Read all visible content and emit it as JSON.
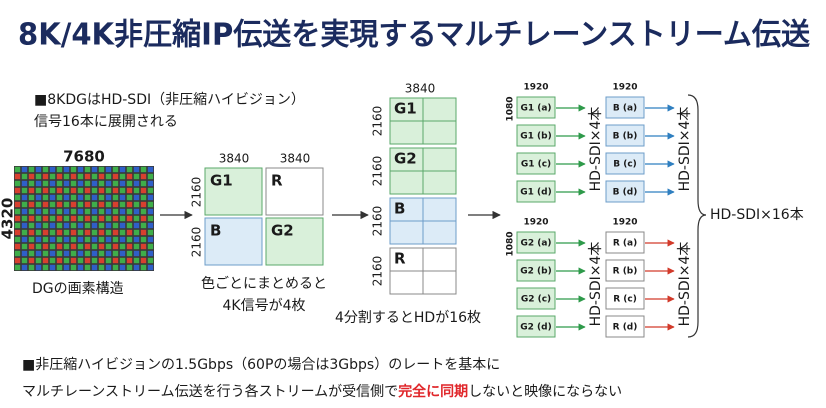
{
  "title": "8K/4K非圧縮IP伝送を実現するマルチレーンストリーム伝送",
  "note": [
    "■8KDGはHD-SDI（非圧縮ハイビジョン）",
    "信号16本に展開される"
  ],
  "source": {
    "width": "7680",
    "height": "4320",
    "caption": "DGの画素構造"
  },
  "colors": {
    "width_labels": [
      "3840",
      "3840"
    ],
    "height_labels": [
      "2160",
      "2160"
    ],
    "blocks": [
      "G1",
      "R",
      "B",
      "G2"
    ],
    "caption": [
      "色ごとにまとめると",
      "4K信号が4枚"
    ]
  },
  "split": {
    "width": "3840",
    "blocks": [
      {
        "label": "G1",
        "height": "2160"
      },
      {
        "label": "G2",
        "height": "2160"
      },
      {
        "label": "B",
        "height": "2160"
      },
      {
        "label": "R",
        "height": "2160"
      }
    ],
    "caption": "4分割するとHDが16枚"
  },
  "streams": {
    "groups": [
      {
        "width": "1920",
        "height": "1080",
        "items": [
          "G1 (a)",
          "G1 (b)",
          "G1 (c)",
          "G1 (d)"
        ],
        "count": "HD-SDI×4本"
      },
      {
        "width": "1920",
        "items": [
          "B (a)",
          "B (b)",
          "B (c)",
          "B (d)"
        ],
        "count": "HD-SDI×4本"
      },
      {
        "width": "1920",
        "height": "1080",
        "items": [
          "G2 (a)",
          "G2 (b)",
          "G2 (c)",
          "G2 (d)"
        ],
        "count": "HD-SDI×4本"
      },
      {
        "width": "1920",
        "items": [
          "R (a)",
          "R (b)",
          "R (c)",
          "R (d)"
        ],
        "count": "HD-SDI×4本"
      }
    ],
    "total": "HD-SDI×16本"
  },
  "footer": {
    "line1": "■非圧縮ハイビジョンの1.5Gbps（60Pの場合は3Gbps）のレートを基本に",
    "line2": [
      "マルチレーンストリーム伝送を行う各ストリームが受信側で",
      "完全に同期",
      "しないと映像にならない"
    ]
  }
}
